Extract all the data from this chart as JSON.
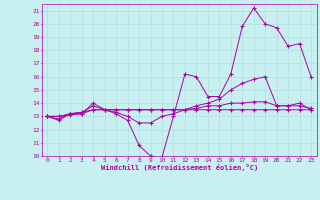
{
  "xlabel": "Windchill (Refroidissement éolien,°C)",
  "background_color": "#c8f0f0",
  "grid_color": "#b0dede",
  "line_color": "#aa00aa",
  "xlim": [
    -0.5,
    23.5
  ],
  "ylim": [
    10,
    21.5
  ],
  "yticks": [
    10,
    11,
    12,
    13,
    14,
    15,
    16,
    17,
    18,
    19,
    20,
    21
  ],
  "xticks": [
    0,
    1,
    2,
    3,
    4,
    5,
    6,
    7,
    8,
    9,
    10,
    11,
    12,
    13,
    14,
    15,
    16,
    17,
    18,
    19,
    20,
    21,
    22,
    23
  ],
  "series1": [
    13.0,
    12.7,
    13.2,
    13.2,
    14.0,
    13.5,
    13.2,
    12.7,
    10.8,
    10.0,
    9.9,
    13.0,
    16.2,
    16.0,
    14.5,
    14.5,
    16.2,
    19.8,
    21.2,
    20.0,
    19.7,
    18.3,
    18.5,
    16.0
  ],
  "series2": [
    13.0,
    12.8,
    13.2,
    13.3,
    13.8,
    13.5,
    13.3,
    13.0,
    12.5,
    12.5,
    13.0,
    13.2,
    13.5,
    13.8,
    14.0,
    14.3,
    15.0,
    15.5,
    15.8,
    16.0,
    13.8,
    13.8,
    14.0,
    13.5
  ],
  "series3": [
    13.0,
    13.0,
    13.2,
    13.3,
    13.5,
    13.5,
    13.5,
    13.5,
    13.5,
    13.5,
    13.5,
    13.5,
    13.5,
    13.5,
    13.5,
    13.5,
    13.5,
    13.5,
    13.5,
    13.5,
    13.5,
    13.5,
    13.5,
    13.5
  ],
  "series4": [
    13.0,
    13.0,
    13.1,
    13.2,
    13.5,
    13.5,
    13.5,
    13.5,
    13.5,
    13.5,
    13.5,
    13.5,
    13.5,
    13.6,
    13.8,
    13.8,
    14.0,
    14.0,
    14.1,
    14.1,
    13.8,
    13.8,
    13.8,
    13.6
  ]
}
